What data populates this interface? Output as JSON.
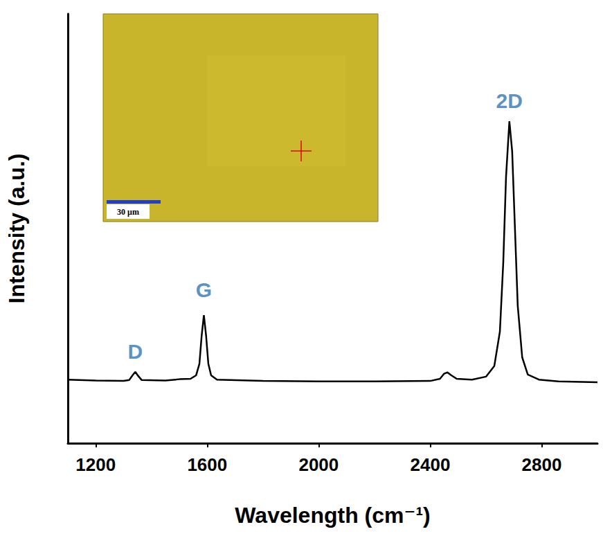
{
  "chart_data": {
    "type": "line",
    "x_label": "Wavelength (cm⁻¹)",
    "y_label": "Intensity (a.u.)",
    "x": [
      1100,
      1200,
      1300,
      1320,
      1332,
      1342,
      1352,
      1365,
      1450,
      1500,
      1540,
      1560,
      1572,
      1580,
      1588,
      1596,
      1604,
      1614,
      1635,
      1800,
      2000,
      2200,
      2400,
      2435,
      2450,
      2462,
      2474,
      2495,
      2550,
      2600,
      2630,
      2650,
      2662,
      2672,
      2684,
      2694,
      2704,
      2714,
      2730,
      2750,
      2790,
      2860,
      3000
    ],
    "values": [
      14.8,
      14.6,
      14.5,
      14.7,
      15.8,
      16.6,
      15.7,
      14.7,
      14.6,
      14.9,
      15.0,
      15.8,
      18.5,
      25.0,
      29.8,
      25.0,
      18.5,
      15.8,
      14.8,
      14.5,
      14.4,
      14.4,
      14.5,
      15.0,
      16.2,
      16.5,
      15.9,
      15.0,
      14.8,
      15.5,
      18.0,
      26.0,
      42.0,
      62.0,
      75.0,
      68.0,
      50.0,
      32.0,
      20.0,
      16.0,
      14.8,
      14.4,
      14.2
    ],
    "color": "#000000",
    "xlim": [
      1100,
      3000
    ],
    "xticks": [
      1200,
      1600,
      2000,
      2400,
      2800
    ],
    "ylim": [
      0,
      100
    ],
    "tick_labels": "x",
    "grid": false,
    "annotations": [
      {
        "text": "D",
        "x": 1342,
        "y": 21.3
      },
      {
        "text": "G",
        "x": 1588,
        "y": 35.8
      },
      {
        "text": "2D",
        "x": 2684,
        "y": 79.8
      }
    ],
    "inset": {
      "scale_bar_label": "30 μm"
    }
  }
}
